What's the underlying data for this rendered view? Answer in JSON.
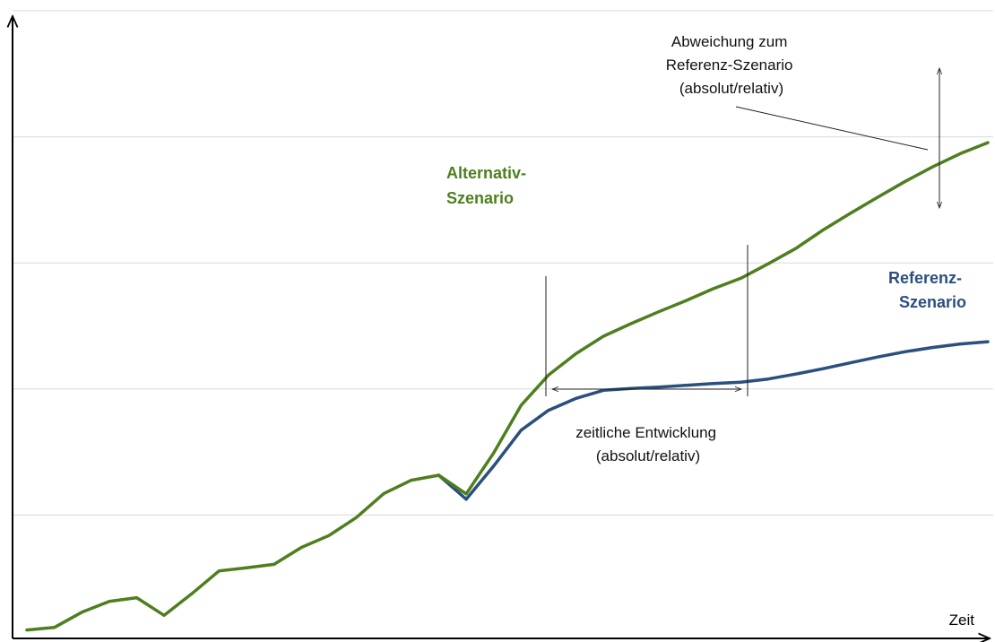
{
  "chart_data": {
    "type": "line",
    "title": "",
    "xlabel": "Zeit",
    "ylabel": "",
    "grid": true,
    "series": [
      {
        "name": "Alternativ-Szenario",
        "color": "#4e7f1e",
        "points": [
          [
            0,
            0.88
          ],
          [
            1,
            1.08
          ],
          [
            2,
            2.29
          ],
          [
            3,
            3.15
          ],
          [
            4,
            3.44
          ],
          [
            5,
            2.04
          ],
          [
            6,
            3.75
          ],
          [
            7,
            5.57
          ],
          [
            8,
            5.81
          ],
          [
            9,
            6.09
          ],
          [
            10,
            7.43
          ],
          [
            11,
            8.37
          ],
          [
            12,
            9.8
          ],
          [
            13,
            11.71
          ],
          [
            14,
            12.76
          ],
          [
            15,
            13.16
          ],
          [
            16,
            11.68
          ],
          [
            17,
            14.92
          ],
          [
            18,
            18.7
          ],
          [
            19,
            21.1
          ],
          [
            20,
            22.8
          ],
          [
            21,
            24.18
          ],
          [
            22,
            25.18
          ],
          [
            23,
            26.12
          ],
          [
            24,
            27.0
          ],
          [
            25,
            27.95
          ],
          [
            26,
            28.78
          ],
          [
            27,
            29.93
          ],
          [
            28,
            31.14
          ],
          [
            29,
            32.61
          ],
          [
            30,
            33.94
          ],
          [
            31,
            35.23
          ],
          [
            32,
            36.47
          ],
          [
            33,
            37.63
          ],
          [
            34,
            38.67
          ],
          [
            35,
            39.54
          ]
        ]
      },
      {
        "name": "Referenz-Szenario",
        "color": "#2b4f7e",
        "points": [
          [
            15,
            13.16
          ],
          [
            16,
            11.25
          ],
          [
            17,
            13.88
          ],
          [
            18,
            16.73
          ],
          [
            19,
            18.31
          ],
          [
            20,
            19.25
          ],
          [
            21,
            19.89
          ],
          [
            22,
            20.04
          ],
          [
            23,
            20.15
          ],
          [
            24,
            20.29
          ],
          [
            25,
            20.43
          ],
          [
            26,
            20.54
          ],
          [
            27,
            20.79
          ],
          [
            28,
            21.18
          ],
          [
            29,
            21.61
          ],
          [
            30,
            22.08
          ],
          [
            31,
            22.54
          ],
          [
            32,
            22.96
          ],
          [
            33,
            23.29
          ],
          [
            34,
            23.57
          ],
          [
            35,
            23.75
          ]
        ]
      }
    ],
    "annotations": {
      "deviation": [
        "Abweichung zum",
        "Referenz-Szenario",
        "(absolut/relativ)"
      ],
      "temporal": [
        "zeitliche Entwicklung",
        "(absolut/relativ)"
      ],
      "alt_label": [
        "Alternativ-",
        "Szenario"
      ],
      "ref_label": [
        "Referenz-",
        "Szenario"
      ]
    }
  }
}
